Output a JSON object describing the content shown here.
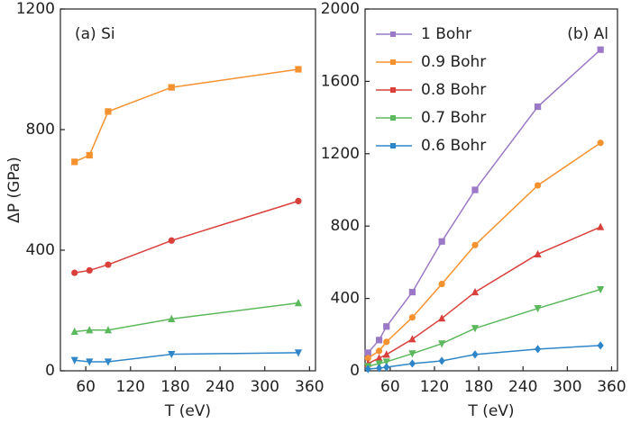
{
  "chart_data": [
    {
      "type": "line",
      "annotation": "(a) Si",
      "x_label": "T (eV)",
      "y_label": "ΔP (GPa)",
      "x": [
        45,
        65,
        90,
        175,
        345
      ],
      "xlim": [
        26,
        368
      ],
      "xticks": [
        60,
        120,
        180,
        240,
        300,
        360
      ],
      "ylim": [
        0,
        1200
      ],
      "yticks": [
        0,
        400,
        800,
        1200
      ],
      "series": [
        {
          "color": "#f5922f",
          "marker": "square",
          "values": [
            693,
            715,
            860,
            940,
            1000
          ]
        },
        {
          "color": "#d9403b",
          "marker": "circle",
          "values": [
            325,
            333,
            352,
            432,
            563
          ]
        },
        {
          "color": "#5cb85c",
          "marker": "triangle-up",
          "values": [
            130,
            135,
            135,
            172,
            225
          ]
        },
        {
          "color": "#2e86c8",
          "marker": "triangle-down",
          "values": [
            35,
            30,
            30,
            55,
            60
          ]
        }
      ]
    },
    {
      "type": "line",
      "annotation": "(b) Al",
      "x_label": "T (eV)",
      "x": [
        30,
        45,
        55,
        90,
        130,
        175,
        260,
        345
      ],
      "xlim": [
        26,
        368
      ],
      "xticks": [
        60,
        120,
        180,
        240,
        300,
        360
      ],
      "ylim": [
        0,
        2000
      ],
      "yticks": [
        0,
        400,
        800,
        1200,
        1600,
        2000
      ],
      "series": [
        {
          "name": "1 Bohr",
          "color": "#9b79c6",
          "marker": "square",
          "values": [
            100,
            170,
            245,
            435,
            715,
            1000,
            1460,
            1775
          ]
        },
        {
          "name": "0.9 Bohr",
          "color": "#f5922f",
          "marker": "circle",
          "values": [
            70,
            110,
            160,
            295,
            480,
            695,
            1025,
            1260
          ]
        },
        {
          "name": "0.8 Bohr",
          "color": "#d9403b",
          "marker": "triangle-up",
          "values": [
            40,
            70,
            90,
            175,
            290,
            435,
            645,
            795
          ]
        },
        {
          "name": "0.7 Bohr",
          "color": "#5cb85c",
          "marker": "triangle-down",
          "values": [
            25,
            40,
            50,
            95,
            150,
            235,
            345,
            450
          ]
        },
        {
          "name": "0.6 Bohr",
          "color": "#2e86c8",
          "marker": "diamond",
          "values": [
            10,
            15,
            20,
            40,
            55,
            90,
            120,
            140
          ]
        }
      ]
    }
  ]
}
